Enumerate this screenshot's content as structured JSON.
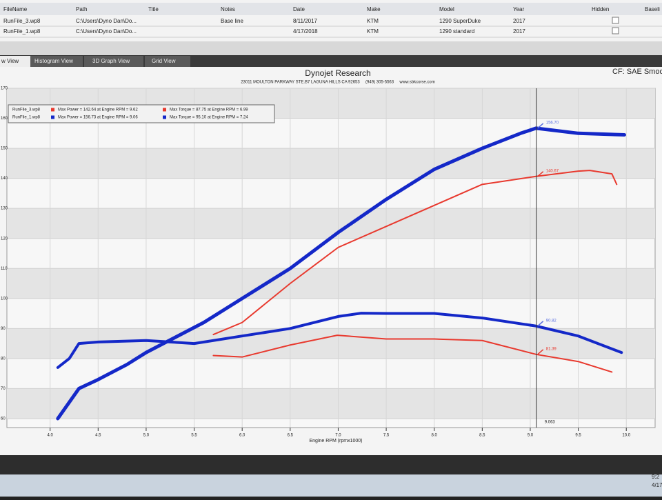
{
  "table": {
    "columns": [
      "FileName",
      "Path",
      "Title",
      "Notes",
      "Date",
      "Make",
      "Model",
      "Year",
      "Hidden",
      "Baseli"
    ],
    "rows": [
      {
        "file": "RunFile_3.wp8",
        "path": "C:\\Users\\Dyno Dan\\Do...",
        "notes": "Base line",
        "date": "8/11/2017",
        "make": "KTM",
        "model": "1290 SuperDuke",
        "year": "2017"
      },
      {
        "file": "RunFile_1.wp8",
        "path": "C:\\Users\\Dyno Dan\\Do...",
        "date": "4/17/2018",
        "make": "KTM",
        "model": "1290 standard",
        "year": "2017"
      }
    ]
  },
  "tabs": [
    "w View",
    "Histogram View",
    "3D Graph View",
    "Grid View"
  ],
  "cf_label": "CF: SAE Smoo",
  "taskbar": {
    "time": "9:2",
    "date": "4/17"
  },
  "chart_data": {
    "type": "line",
    "title": "Dynojet Research",
    "subtitle": "23011 MOULTON PARKWAY STE.B7 LAGUNA HILLS CA 92653     (949) 305-5563     www.sbkcorse.com",
    "x_label": "Engine RPM (rpmx1000)",
    "xlim": [
      3.55,
      10.3
    ],
    "ylim": [
      57,
      170
    ],
    "xticks": [
      {
        "value": 4,
        "label": "4.0"
      },
      4.5,
      {
        "value": 5,
        "label": "5.0"
      },
      5.5,
      {
        "value": 6,
        "label": "6.0"
      },
      6.5,
      {
        "value": 7,
        "label": "7.0"
      },
      7.5,
      {
        "value": 8,
        "label": "8.0"
      },
      8.5,
      {
        "value": 9,
        "label": "9.0"
      },
      9.5,
      {
        "value": 10,
        "label": "10.0"
      }
    ],
    "yticks": [
      60,
      70,
      80,
      90,
      100,
      110,
      120,
      130,
      140,
      150,
      160,
      170
    ],
    "grid": true,
    "legend": [
      {
        "file": "RunFile_3.wp8",
        "color": "#e8392e",
        "power": "Max Power = 142.64 at Engine RPM = 9.62",
        "torque": "Max Torque = 87.75 at Engine RPM = 6.99"
      },
      {
        "file": "RunFile_1.wp8",
        "color": "#1428c8",
        "power": "Max Power = 156.73 at Engine RPM = 9.06",
        "torque": "Max Torque = 95.10 at Engine RPM = 7.24"
      }
    ],
    "series": [
      {
        "color": "#1428c8",
        "width": 5,
        "x": [
          4.08,
          4.3,
          4.5,
          4.8,
          5.0,
          5.3,
          5.6,
          6.0,
          6.5,
          7.0,
          7.5,
          8.0,
          8.5,
          8.9,
          9.06,
          9.5,
          9.98
        ],
        "values": [
          60,
          70,
          73,
          78,
          82,
          87,
          92,
          100,
          110,
          122,
          133,
          143,
          150,
          155,
          156.7,
          155,
          154.5
        ]
      },
      {
        "color": "#e8392e",
        "width": 2,
        "x": [
          5.7,
          6.0,
          6.5,
          7.0,
          7.5,
          8.0,
          8.5,
          9.06,
          9.5,
          9.62,
          9.85,
          9.9
        ],
        "values": [
          88,
          92,
          105,
          117,
          124,
          131,
          138,
          140.67,
          142.4,
          142.64,
          141.5,
          138
        ]
      },
      {
        "color": "#1428c8",
        "width": 4,
        "x": [
          4.08,
          4.2,
          4.3,
          4.5,
          5.0,
          5.5,
          6.0,
          6.5,
          7.0,
          7.24,
          7.5,
          8.0,
          8.5,
          9.06,
          9.5,
          9.95
        ],
        "values": [
          77,
          80,
          85,
          85.5,
          86,
          85,
          87.5,
          90,
          94,
          95.1,
          95,
          95,
          93.5,
          90.82,
          87.5,
          82
        ]
      },
      {
        "color": "#e8392e",
        "width": 2,
        "x": [
          5.7,
          6.0,
          6.5,
          6.99,
          7.5,
          8.0,
          8.5,
          9.06,
          9.5,
          9.85
        ],
        "values": [
          81,
          80.5,
          84.5,
          87.75,
          86.5,
          86.5,
          86,
          81.39,
          79,
          75.5
        ]
      }
    ],
    "cursor": {
      "x": 9.063,
      "readings": [
        {
          "value": 156.7,
          "label": "156.70",
          "color": "#5a6fe0"
        },
        {
          "value": 140.67,
          "label": "140.67",
          "color": "#e8392e"
        },
        {
          "value": 90.82,
          "label": "90.82",
          "color": "#5a6fe0"
        },
        {
          "value": 81.39,
          "label": "81.39",
          "color": "#e8392e"
        }
      ]
    }
  }
}
